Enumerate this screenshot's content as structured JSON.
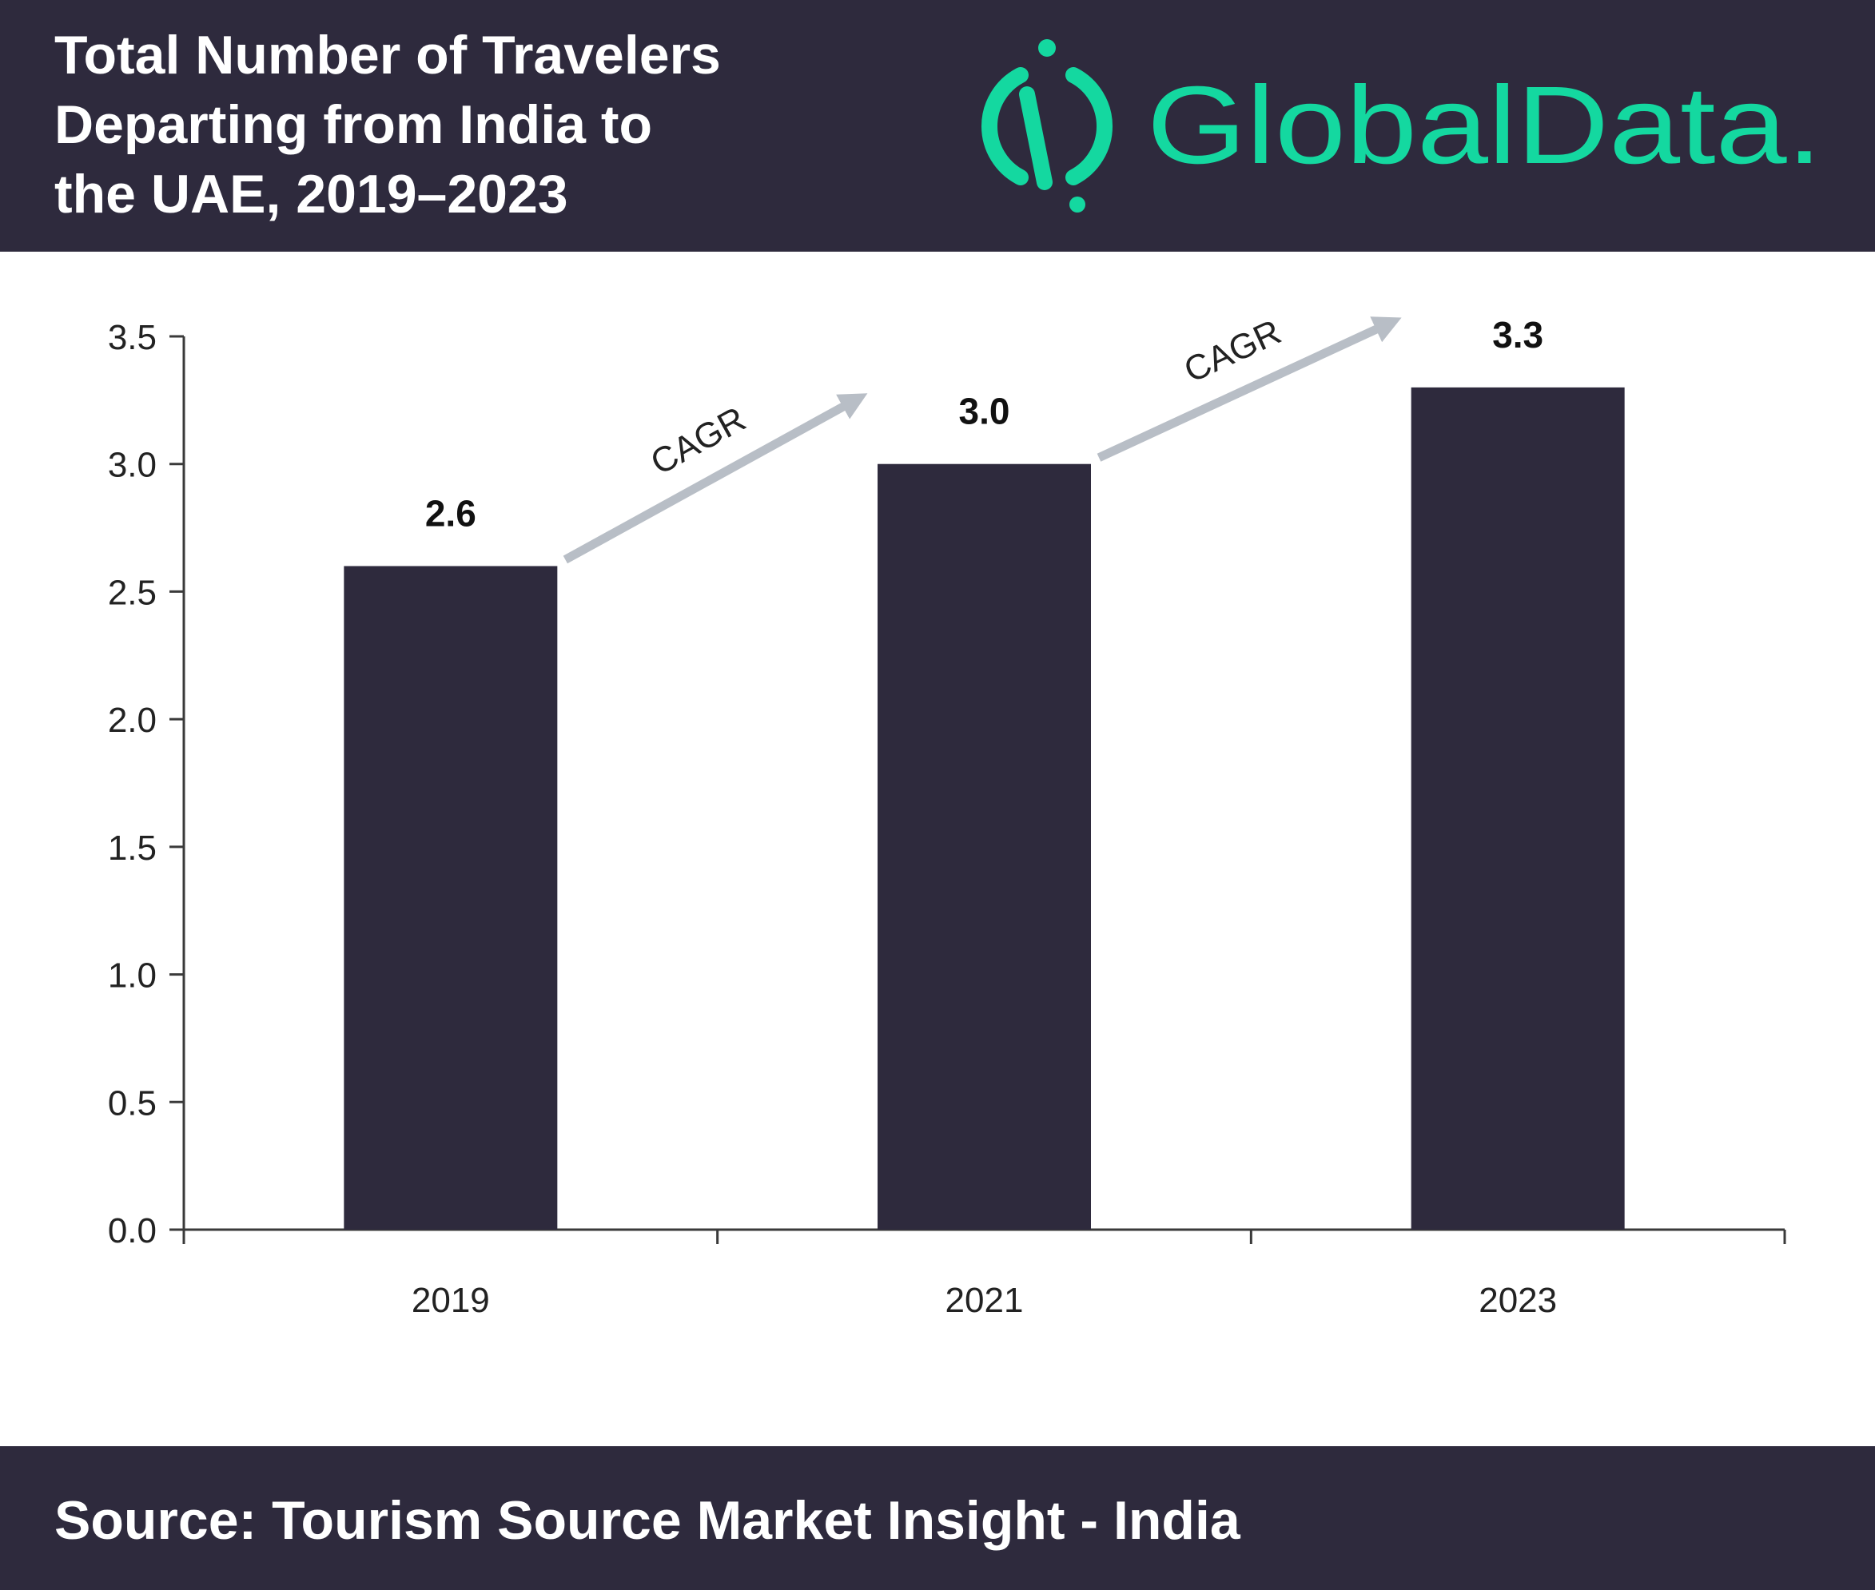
{
  "header": {
    "title_lines": [
      "Total Number of Travelers",
      "Departing from India to",
      "the UAE, 2019–2023"
    ],
    "logo_text": "GlobalData.",
    "brand_color": "#14d8a0",
    "background_color": "#2e2a3d"
  },
  "chart_data": {
    "type": "bar",
    "title": "Total Number of Travelers Departing from India to the UAE, 2019–2023",
    "categories": [
      "2019",
      "2021",
      "2023"
    ],
    "values": [
      2.6,
      3.0,
      3.3
    ],
    "data_labels": [
      "2.6",
      "3.0",
      "3.3"
    ],
    "ylim": [
      0,
      3.5
    ],
    "yticks": [
      "0.0",
      "0.5",
      "1.0",
      "1.5",
      "2.0",
      "2.5",
      "3.0",
      "3.5"
    ],
    "bar_color": "#2e2a3d",
    "grid": false,
    "annotations": [
      {
        "text": "CAGR",
        "from": "2019",
        "to": "2021",
        "arrow_color": "#b8bec6"
      },
      {
        "text": "CAGR",
        "from": "2021",
        "to": "2023",
        "arrow_color": "#b8bec6"
      }
    ]
  },
  "footer": {
    "source": "Source: Tourism Source Market Insight - India"
  }
}
